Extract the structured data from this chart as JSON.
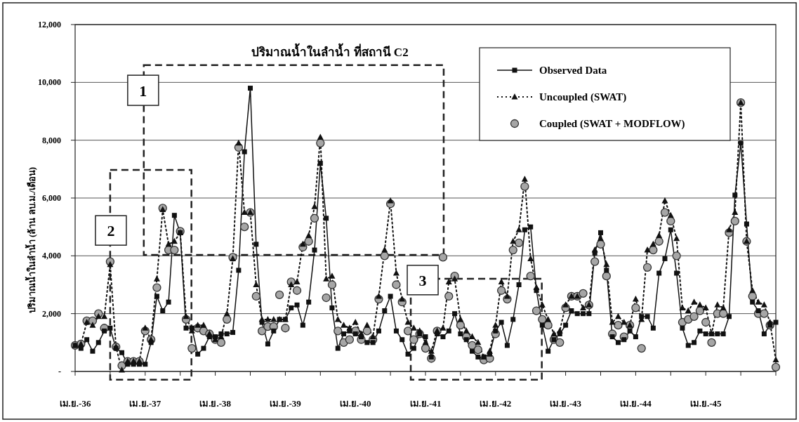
{
  "chart_data": {
    "type": "line",
    "title": "ปริมาณน้ำในลำน้ำ ที่สถานี C2",
    "ylabel": "ปริมาณน้ำในลำน้ำ (ล้าน ลบ.ม./เดือน)",
    "categories": [
      "เม.ย.-36",
      null,
      null,
      null,
      null,
      null,
      null,
      null,
      null,
      null,
      null,
      null,
      "เม.ย.-37",
      null,
      null,
      null,
      null,
      null,
      null,
      null,
      null,
      null,
      null,
      null,
      "เม.ย.-38",
      null,
      null,
      null,
      null,
      null,
      null,
      null,
      null,
      null,
      null,
      null,
      "เม.ย.-39",
      null,
      null,
      null,
      null,
      null,
      null,
      null,
      null,
      null,
      null,
      null,
      "เม.ย.-40",
      null,
      null,
      null,
      null,
      null,
      null,
      null,
      null,
      null,
      null,
      null,
      "เม.ย.-41",
      null,
      null,
      null,
      null,
      null,
      null,
      null,
      null,
      null,
      null,
      null,
      "เม.ย.-42",
      null,
      null,
      null,
      null,
      null,
      null,
      null,
      null,
      null,
      null,
      null,
      "เม.ย.-43",
      null,
      null,
      null,
      null,
      null,
      null,
      null,
      null,
      null,
      null,
      null,
      "เม.ย.-44",
      null,
      null,
      null,
      null,
      null,
      null,
      null,
      null,
      null,
      null,
      null,
      "เม.ย.-45",
      null,
      null,
      null,
      null,
      null,
      null,
      null,
      null,
      null,
      null,
      null,
      null
    ],
    "series": [
      {
        "name": "Observed Data",
        "marker": "square",
        "line_style": "solid",
        "color": "#111111",
        "values": [
          900,
          800,
          1100,
          700,
          1000,
          1400,
          1500,
          800,
          650,
          250,
          250,
          250,
          250,
          1000,
          2600,
          2100,
          2400,
          5400,
          4800,
          1500,
          1500,
          600,
          800,
          1200,
          1200,
          1300,
          1300,
          1350,
          3500,
          7600,
          9800,
          4400,
          1700,
          950,
          1400,
          1800,
          1800,
          2200,
          2300,
          1600,
          2400,
          4200,
          7200,
          5300,
          2200,
          800,
          1300,
          1400,
          1300,
          1200,
          1000,
          1000,
          1400,
          2100,
          2600,
          1400,
          1100,
          600,
          800,
          1300,
          1200,
          500,
          1300,
          1200,
          1400,
          2000,
          1300,
          1100,
          700,
          500,
          500,
          600,
          1400,
          1700,
          900,
          1800,
          3000,
          4900,
          5000,
          2800,
          1600,
          700,
          1100,
          1300,
          1600,
          2100,
          2000,
          2000,
          2000,
          4100,
          4800,
          3500,
          1200,
          1000,
          1100,
          1400,
          1200,
          1900,
          1900,
          1500,
          3400,
          3900,
          4900,
          3400,
          1500,
          900,
          1000,
          1400,
          1300,
          1300,
          1300,
          1300,
          1900,
          6100,
          7900,
          5100,
          2400,
          2100,
          1300,
          1600,
          1700
        ]
      },
      {
        "name": "Uncoupled (SWAT)",
        "marker": "triangle",
        "line_style": "dotted",
        "color": "#111111",
        "values": [
          900,
          950,
          1700,
          1600,
          1900,
          1900,
          3700,
          850,
          50,
          350,
          350,
          350,
          1500,
          1100,
          3200,
          5600,
          4400,
          4500,
          4800,
          1900,
          1400,
          1600,
          1600,
          1300,
          1100,
          1200,
          2000,
          3900,
          7900,
          5500,
          5500,
          3000,
          1800,
          1800,
          1800,
          1800,
          1800,
          3000,
          3100,
          4400,
          4700,
          5700,
          8100,
          3200,
          3300,
          1800,
          1600,
          1500,
          1700,
          1300,
          1600,
          1200,
          2600,
          4200,
          5900,
          3400,
          2500,
          1700,
          1500,
          1400,
          1000,
          700,
          1400,
          1500,
          3100,
          3200,
          1800,
          1400,
          1200,
          1000,
          500,
          700,
          1600,
          3100,
          2600,
          4500,
          4900,
          6650,
          3900,
          2900,
          2300,
          1800,
          1300,
          1400,
          2300,
          2600,
          2600,
          2200,
          2300,
          4200,
          4600,
          3700,
          1700,
          1900,
          1700,
          1600,
          2500,
          1800,
          4200,
          4400,
          4700,
          5900,
          5400,
          4600,
          2200,
          2100,
          2400,
          2300,
          2200,
          1300,
          2300,
          2200,
          4900,
          5500,
          9300,
          4500,
          2800,
          2400,
          2300,
          1700,
          400
        ]
      },
      {
        "name": "Coupled (SWAT + MODFLOW)",
        "type": "scatter",
        "marker": "circle",
        "color": "#a6a6a6",
        "values": [
          900,
          950,
          1750,
          1750,
          2000,
          1500,
          3800,
          850,
          200,
          350,
          350,
          350,
          1400,
          1100,
          2900,
          5650,
          4200,
          4200,
          4850,
          1800,
          800,
          1500,
          1400,
          1300,
          1100,
          1000,
          1800,
          3950,
          7750,
          5000,
          5500,
          2600,
          1400,
          1550,
          1550,
          2650,
          1500,
          3100,
          2800,
          4300,
          4500,
          5300,
          7900,
          2550,
          3000,
          1400,
          1000,
          1100,
          1400,
          1100,
          1400,
          1100,
          2500,
          4000,
          5800,
          3000,
          2400,
          1400,
          1100,
          1300,
          800,
          450,
          1400,
          3950,
          2600,
          3300,
          1600,
          1200,
          900,
          750,
          400,
          450,
          1300,
          2800,
          2500,
          4200,
          4450,
          6400,
          3300,
          2100,
          1800,
          1600,
          1100,
          1000,
          2200,
          2600,
          2600,
          2700,
          2300,
          3800,
          4400,
          3300,
          1300,
          1600,
          1200,
          1600,
          2200,
          800,
          3600,
          4200,
          4500,
          5500,
          5200,
          4000,
          1700,
          1800,
          1900,
          2100,
          1700,
          1000,
          2000,
          2000,
          4800,
          5200,
          9300,
          4500,
          2600,
          2000,
          2000,
          1600,
          150
        ]
      }
    ],
    "ylim": [
      0,
      12000
    ],
    "yticks": [
      {
        "value": 0,
        "label": "-"
      },
      {
        "value": 2000,
        "label": "2,000"
      },
      {
        "value": 4000,
        "label": "4,000"
      },
      {
        "value": 6000,
        "label": "6,000"
      },
      {
        "value": 8000,
        "label": "8,000"
      },
      {
        "value": 10000,
        "label": "10,000"
      },
      {
        "value": 12000,
        "label": "12,000"
      }
    ],
    "grid": "y",
    "legend": "top right",
    "annotations": [
      "1",
      "2",
      "3"
    ]
  }
}
